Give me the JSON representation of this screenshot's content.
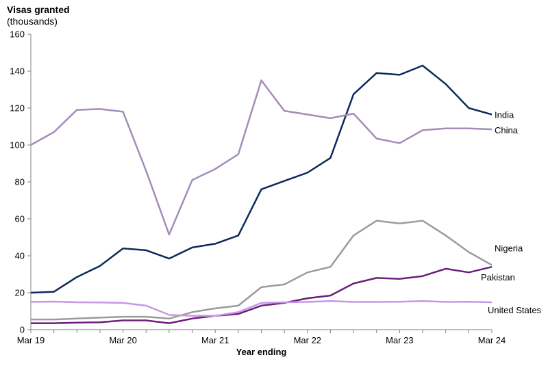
{
  "chart_data": {
    "type": "line",
    "ylabel": "Visas granted",
    "ylabel_unit": "(thousands)",
    "xlabel": "Year ending",
    "ylim": [
      0,
      160
    ],
    "yticks": [
      0,
      20,
      40,
      60,
      80,
      100,
      120,
      140,
      160
    ],
    "x": [
      "Mar 19",
      "Jun 19",
      "Sep 19",
      "Dec 19",
      "Mar 20",
      "Jun 20",
      "Sep 20",
      "Dec 20",
      "Mar 21",
      "Jun 21",
      "Sep 21",
      "Dec 21",
      "Mar 22",
      "Jun 22",
      "Sep 22",
      "Dec 22",
      "Mar 23",
      "Jun 23",
      "Sep 23",
      "Dec 23",
      "Mar 24"
    ],
    "xticks": [
      {
        "label": "Mar 19",
        "index": 0
      },
      {
        "label": "Mar 20",
        "index": 4
      },
      {
        "label": "Mar 21",
        "index": 8
      },
      {
        "label": "Mar 22",
        "index": 12
      },
      {
        "label": "Mar 23",
        "index": 16
      },
      {
        "label": "Mar 24",
        "index": 20
      }
    ],
    "grid": false,
    "series": [
      {
        "name": "India",
        "color": "#0b2a5c",
        "values": [
          20,
          20.5,
          28.5,
          34.5,
          44,
          43,
          38.5,
          44.5,
          46.5,
          51,
          76,
          80.5,
          85,
          93,
          127.5,
          139,
          138,
          143,
          133,
          120,
          116.5
        ]
      },
      {
        "name": "China",
        "color": "#a48cba",
        "values": [
          100,
          107,
          119,
          119.5,
          118,
          86,
          51.5,
          81,
          87,
          95,
          135,
          118.5,
          116.5,
          114.5,
          117,
          103.5,
          101,
          108,
          109,
          109,
          108.5
        ]
      },
      {
        "name": "Nigeria",
        "color": "#9b9b9b",
        "values": [
          5.5,
          5.5,
          6,
          6.5,
          7,
          7,
          6,
          9.5,
          11.5,
          13,
          23,
          24.5,
          31,
          34,
          51,
          59,
          57.5,
          59,
          51,
          42,
          35
        ]
      },
      {
        "name": "Pakistan",
        "color": "#6b1f7b",
        "values": [
          3.5,
          3.5,
          3.8,
          4,
          5,
          5,
          3.5,
          6,
          7.5,
          8.5,
          13,
          14.5,
          17,
          18.5,
          25,
          28,
          27.5,
          29,
          33,
          31,
          34
        ]
      },
      {
        "name": "United States",
        "color": "#c896e6",
        "values": [
          15,
          15.2,
          14.8,
          14.7,
          14.5,
          13,
          8,
          7.5,
          7.5,
          9.5,
          14.5,
          14.8,
          15,
          15.5,
          15,
          15,
          15.1,
          15.5,
          15,
          15.1,
          14.8
        ]
      }
    ]
  }
}
